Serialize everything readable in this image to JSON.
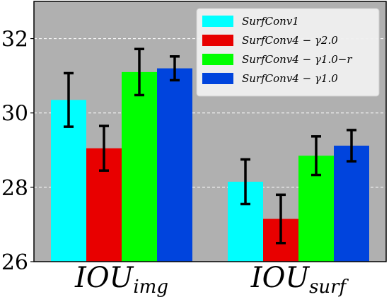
{
  "chart_data": {
    "type": "bar",
    "categories": [
      {
        "base": "IOU",
        "sub": "img"
      },
      {
        "base": "IOU",
        "sub": "surf"
      }
    ],
    "series": [
      {
        "name": "SurfConv1",
        "color": "#00FFFF",
        "values": [
          30.35,
          28.15
        ],
        "err": [
          0.72,
          0.6
        ]
      },
      {
        "name": "SurfConv4 − γ2.0",
        "color": "#E80000",
        "values": [
          29.05,
          27.15
        ],
        "err": [
          0.6,
          0.65
        ]
      },
      {
        "name": "SurfConv4 − γ1.0−r",
        "color": "#00FF00",
        "values": [
          31.1,
          28.85
        ],
        "err": [
          0.62,
          0.52
        ]
      },
      {
        "name": "SurfConv4 − γ1.0",
        "color": "#0044DD",
        "values": [
          31.2,
          29.12
        ],
        "err": [
          0.32,
          0.42
        ]
      }
    ],
    "ylim": [
      26,
      33
    ],
    "yticks": [
      "26",
      "28",
      "30",
      "32"
    ],
    "grid": true,
    "legend_position": "top-right",
    "background": "#B0B0B0"
  }
}
